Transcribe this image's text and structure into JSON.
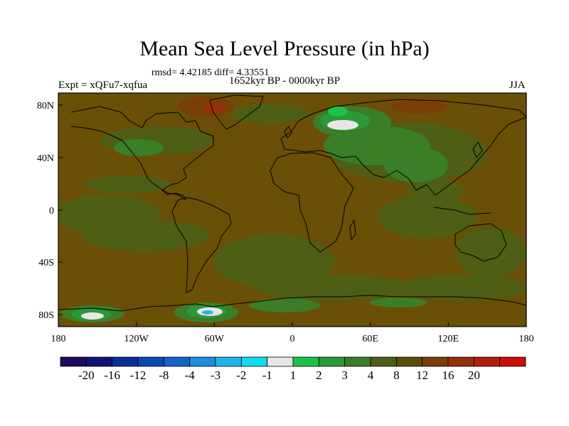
{
  "title": "Mean Sea Level Pressure (in hPa)",
  "stats": "rmsd= 4.42185 diff= 4.33551",
  "period": "1652kyr BP - 0000kyr BP",
  "experiment": "Expt = xQFu7-xqfua",
  "season": "JJA",
  "map": {
    "lat_ticks": [
      "80N",
      "40N",
      "0",
      "40S",
      "80S"
    ],
    "lon_ticks": [
      "180",
      "120W",
      "60W",
      "0",
      "60E",
      "120E",
      "180"
    ]
  },
  "colorbar": {
    "colors": [
      "#1c0a5c",
      "#0e1478",
      "#0a2c98",
      "#0a48b4",
      "#1464c8",
      "#1e8ce0",
      "#22b4e8",
      "#10dcf0",
      "#e6e6e6",
      "#1ec24a",
      "#2a9a38",
      "#3a7e28",
      "#4e5e14",
      "#5e4c06",
      "#7a3e06",
      "#96300a",
      "#b01e0a",
      "#cc0c06"
    ],
    "labels": [
      "-20",
      "-16",
      "-12",
      "-8",
      "-4",
      "-3",
      "-2",
      "-1",
      "1",
      "2",
      "3",
      "4",
      "8",
      "12",
      "16",
      "20"
    ]
  },
  "colors": {
    "background_field": "#6b4f07",
    "weak_positive": "#4e5e14",
    "moderate_positive": "#3a7e28",
    "strong_positive": "#2a9a38",
    "negative_high_lat": "#e6e6e6",
    "high_anomaly": "#7a3e06"
  }
}
